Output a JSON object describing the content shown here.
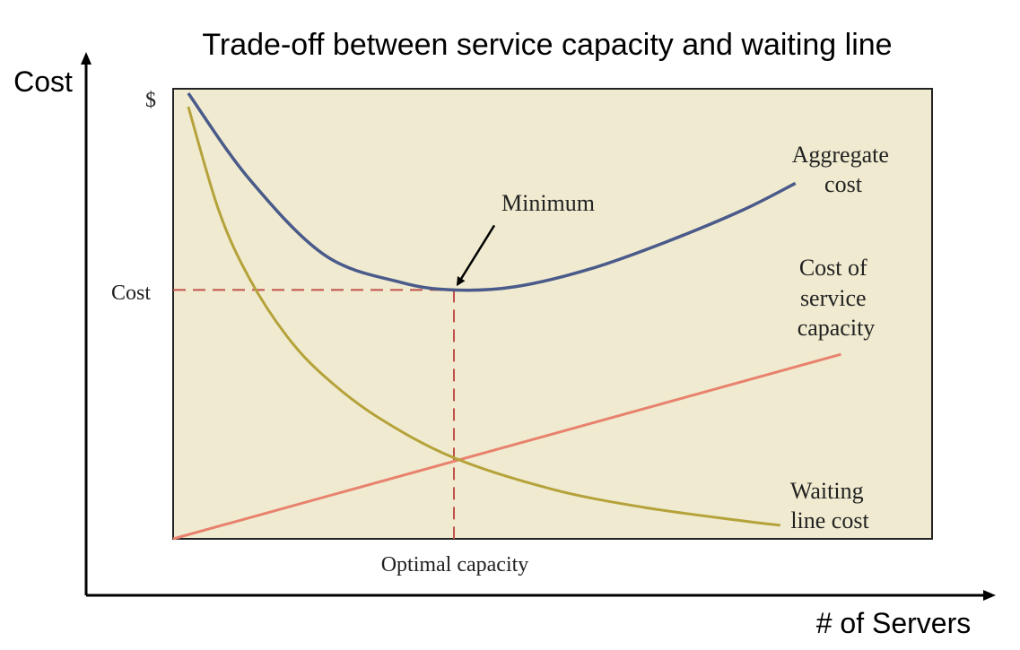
{
  "chart_data": {
    "type": "line",
    "title": "Trade-off between service capacity and waiting line",
    "xlabel": "# of Servers",
    "ylabel": "Cost",
    "y_tick_labels": [
      "$",
      "Cost"
    ],
    "x_tick_labels": [
      "Optimal capacity"
    ],
    "series": [
      {
        "name": "Aggregate cost",
        "label_lines": [
          "Aggregate",
          "cost"
        ],
        "color": "#4a5a8a",
        "x": [
          0.02,
          0.1,
          0.2,
          0.3,
          0.37,
          0.45,
          0.55,
          0.65,
          0.75,
          0.82
        ],
        "values": [
          0.99,
          0.8,
          0.63,
          0.57,
          0.553,
          0.56,
          0.6,
          0.66,
          0.73,
          0.79
        ]
      },
      {
        "name": "Cost of service capacity",
        "label_lines": [
          "Cost of",
          "service",
          "capacity"
        ],
        "color": "#e8826e",
        "x": [
          0,
          0.88
        ],
        "values": [
          0,
          0.41
        ]
      },
      {
        "name": "Waiting line cost",
        "label_lines": [
          "Waiting",
          "line cost"
        ],
        "color": "#b5a23a",
        "x": [
          0.02,
          0.06,
          0.1,
          0.15,
          0.2,
          0.27,
          0.37,
          0.5,
          0.62,
          0.75,
          0.8
        ],
        "values": [
          0.96,
          0.73,
          0.58,
          0.45,
          0.36,
          0.27,
          0.18,
          0.11,
          0.07,
          0.04,
          0.03
        ]
      }
    ],
    "optimum": {
      "x": 0.37,
      "y": 0.553
    },
    "annotations": [
      {
        "text": "Minimum"
      }
    ],
    "xlim": [
      0,
      1
    ],
    "ylim": [
      0,
      1
    ],
    "grid": false,
    "legend": "none",
    "plot_background": "#f0ebd0"
  }
}
